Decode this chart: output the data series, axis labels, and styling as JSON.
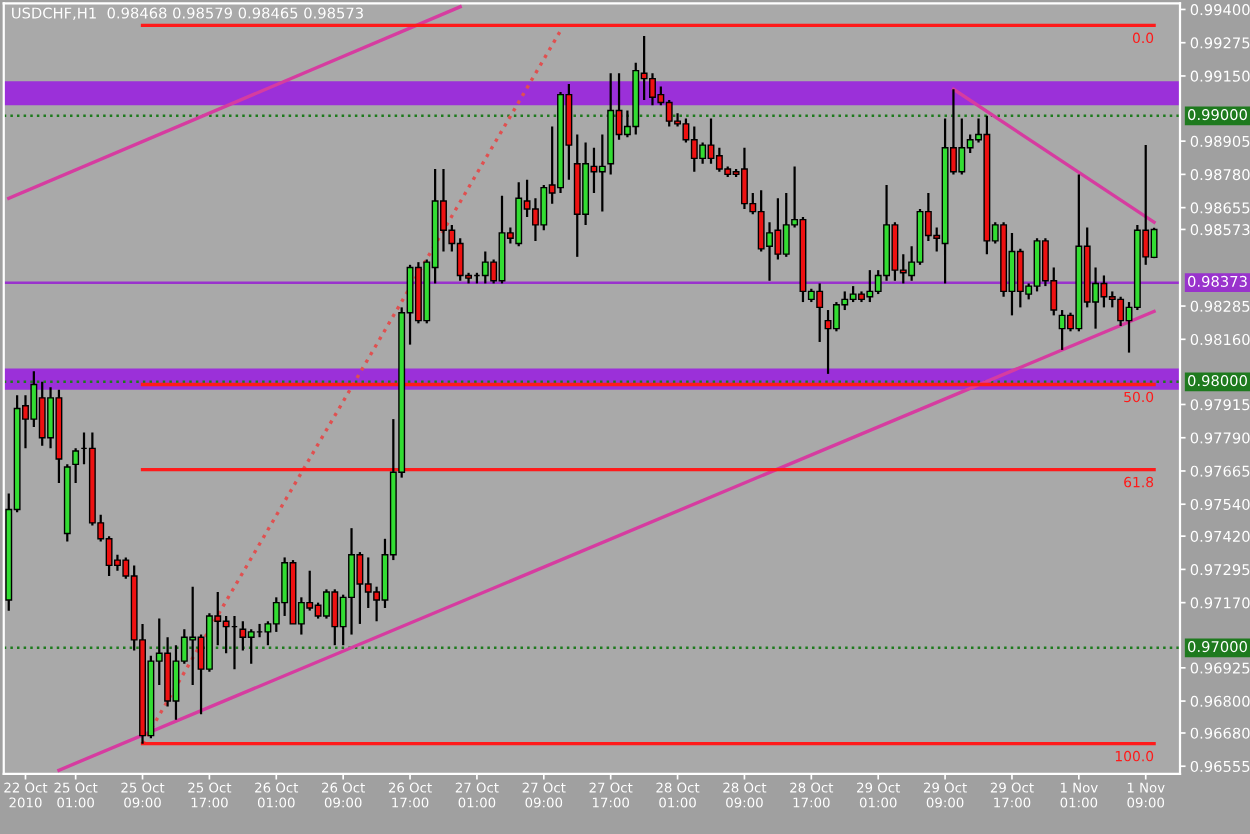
{
  "chart_data": {
    "type": "candlestick",
    "title": "USDCHF,H1  0.98468 0.98579 0.98465 0.98573",
    "categories": [
      null,
      null,
      "22 Oct 2010",
      null,
      null,
      null,
      null,
      null,
      "25 Oct 01:00",
      null,
      null,
      null,
      null,
      null,
      null,
      null,
      "25 Oct 09:00",
      null,
      null,
      null,
      null,
      null,
      null,
      null,
      "25 Oct 17:00",
      null,
      null,
      null,
      null,
      null,
      null,
      null,
      "26 Oct 01:00",
      null,
      null,
      null,
      null,
      null,
      null,
      null,
      "26 Oct 09:00",
      null,
      null,
      null,
      null,
      null,
      null,
      null,
      "26 Oct 17:00",
      null,
      null,
      null,
      null,
      null,
      null,
      null,
      "27 Oct 01:00",
      null,
      null,
      null,
      null,
      null,
      null,
      null,
      "27 Oct 09:00",
      null,
      null,
      null,
      null,
      null,
      null,
      null,
      "27 Oct 17:00",
      null,
      null,
      null,
      null,
      null,
      null,
      null,
      "28 Oct 01:00",
      null,
      null,
      null,
      null,
      null,
      null,
      null,
      "28 Oct 09:00",
      null,
      null,
      null,
      null,
      null,
      null,
      null,
      "28 Oct 17:00",
      null,
      null,
      null,
      null,
      null,
      null,
      null,
      "29 Oct 01:00",
      null,
      null,
      null,
      null,
      null,
      null,
      null,
      "29 Oct 09:00",
      null,
      null,
      null,
      null,
      null,
      null,
      null,
      "29 Oct 17:00",
      null,
      null,
      null,
      null,
      null,
      null,
      null,
      "1 Nov 01:00",
      null,
      null,
      null,
      null,
      null,
      null,
      null,
      "1 Nov 09:00",
      null
    ],
    "ohlc": [
      [
        0.9718,
        0.9758,
        0.9714,
        0.9752
      ],
      [
        0.9752,
        0.9795,
        0.9751,
        0.979
      ],
      [
        0.9791,
        0.9795,
        0.9775,
        0.9786
      ],
      [
        0.9786,
        0.9804,
        0.9783,
        0.9799
      ],
      [
        0.9794,
        0.98,
        0.9776,
        0.9779
      ],
      [
        0.9779,
        0.9798,
        0.9775,
        0.9794
      ],
      [
        0.9794,
        0.9797,
        0.9762,
        0.9771
      ],
      [
        0.9743,
        0.9769,
        0.974,
        0.9768
      ],
      [
        0.9769,
        0.9775,
        0.9762,
        0.9774
      ],
      [
        0.9775,
        0.9781,
        0.9769,
        0.9775
      ],
      [
        0.9775,
        0.9781,
        0.9746,
        0.9747
      ],
      [
        0.9747,
        0.975,
        0.974,
        0.9741
      ],
      [
        0.9741,
        0.9742,
        0.9727,
        0.9731
      ],
      [
        0.9733,
        0.9735,
        0.9729,
        0.9731
      ],
      [
        0.9733,
        0.9734,
        0.9726,
        0.9727
      ],
      [
        0.9727,
        0.9731,
        0.9699,
        0.9703
      ],
      [
        0.9703,
        0.9709,
        0.9664,
        0.9667
      ],
      [
        0.9667,
        0.9697,
        0.9666,
        0.9695
      ],
      [
        0.9695,
        0.9711,
        0.9686,
        0.9698
      ],
      [
        0.9698,
        0.9704,
        0.9678,
        0.968
      ],
      [
        0.968,
        0.9701,
        0.9673,
        0.9695
      ],
      [
        0.9695,
        0.9707,
        0.9694,
        0.9704
      ],
      [
        0.9703,
        0.9723,
        0.9686,
        0.9704
      ],
      [
        0.9704,
        0.9705,
        0.9675,
        0.9692
      ],
      [
        0.9692,
        0.9713,
        0.9691,
        0.9712
      ],
      [
        0.9712,
        0.9721,
        0.9701,
        0.971
      ],
      [
        0.971,
        0.9712,
        0.9698,
        0.9708
      ],
      [
        0.9708,
        0.9712,
        0.9692,
        0.9708
      ],
      [
        0.9707,
        0.971,
        0.9699,
        0.9704
      ],
      [
        0.9704,
        0.9707,
        0.9694,
        0.9706
      ],
      [
        0.9706,
        0.9709,
        0.9704,
        0.9706
      ],
      [
        0.9706,
        0.971,
        0.9701,
        0.9709
      ],
      [
        0.9709,
        0.9719,
        0.9706,
        0.9717
      ],
      [
        0.9717,
        0.9734,
        0.9712,
        0.9732
      ],
      [
        0.9732,
        0.9733,
        0.9709,
        0.9709
      ],
      [
        0.9709,
        0.9719,
        0.9705,
        0.9717
      ],
      [
        0.9717,
        0.9729,
        0.9714,
        0.9715
      ],
      [
        0.9716,
        0.9717,
        0.9711,
        0.9712
      ],
      [
        0.9712,
        0.9722,
        0.9711,
        0.9721
      ],
      [
        0.9721,
        0.9722,
        0.9701,
        0.9708
      ],
      [
        0.9708,
        0.972,
        0.9701,
        0.9719
      ],
      [
        0.9719,
        0.9745,
        0.9705,
        0.9735
      ],
      [
        0.9735,
        0.9736,
        0.9709,
        0.9724
      ],
      [
        0.9724,
        0.9734,
        0.9715,
        0.9721
      ],
      [
        0.9721,
        0.9723,
        0.971,
        0.9718
      ],
      [
        0.9718,
        0.9741,
        0.9715,
        0.9735
      ],
      [
        0.9735,
        0.9786,
        0.9733,
        0.9766
      ],
      [
        0.9766,
        0.9828,
        0.9764,
        0.9826
      ],
      [
        0.9826,
        0.9844,
        0.9814,
        0.9843
      ],
      [
        0.9843,
        0.9845,
        0.9822,
        0.9823
      ],
      [
        0.9823,
        0.9846,
        0.9822,
        0.9845
      ],
      [
        0.9843,
        0.988,
        0.9837,
        0.9868
      ],
      [
        0.9868,
        0.988,
        0.9849,
        0.9857
      ],
      [
        0.9857,
        0.9859,
        0.9849,
        0.9852
      ],
      [
        0.9852,
        0.9854,
        0.9838,
        0.984
      ],
      [
        0.984,
        0.9841,
        0.9837,
        0.9839
      ],
      [
        0.984,
        0.9841,
        0.9837,
        0.984
      ],
      [
        0.984,
        0.9849,
        0.9837,
        0.9845
      ],
      [
        0.9845,
        0.9846,
        0.9837,
        0.9838
      ],
      [
        0.9838,
        0.987,
        0.9837,
        0.9856
      ],
      [
        0.9856,
        0.9858,
        0.9852,
        0.9854
      ],
      [
        0.9852,
        0.9875,
        0.9851,
        0.9869
      ],
      [
        0.9868,
        0.9876,
        0.9862,
        0.9865
      ],
      [
        0.9865,
        0.9869,
        0.9853,
        0.9859
      ],
      [
        0.9859,
        0.9874,
        0.9857,
        0.9873
      ],
      [
        0.9874,
        0.9896,
        0.9867,
        0.9871
      ],
      [
        0.9873,
        0.9909,
        0.9871,
        0.9908
      ],
      [
        0.9908,
        0.9912,
        0.9876,
        0.9889
      ],
      [
        0.9882,
        0.9893,
        0.9847,
        0.9863
      ],
      [
        0.9863,
        0.989,
        0.9859,
        0.9882
      ],
      [
        0.9881,
        0.9888,
        0.9871,
        0.9879
      ],
      [
        0.9879,
        0.9893,
        0.9864,
        0.9881
      ],
      [
        0.9882,
        0.9916,
        0.9878,
        0.9902
      ],
      [
        0.9902,
        0.9916,
        0.9891,
        0.9893
      ],
      [
        0.9893,
        0.9902,
        0.9892,
        0.9896
      ],
      [
        0.9896,
        0.992,
        0.9893,
        0.9917
      ],
      [
        0.9916,
        0.993,
        0.9906,
        0.9914
      ],
      [
        0.9914,
        0.9916,
        0.9904,
        0.9907
      ],
      [
        0.9908,
        0.9911,
        0.9904,
        0.9905
      ],
      [
        0.9905,
        0.9906,
        0.9896,
        0.9898
      ],
      [
        0.9898,
        0.9901,
        0.9896,
        0.9897
      ],
      [
        0.9897,
        0.9899,
        0.989,
        0.9891
      ],
      [
        0.9891,
        0.9896,
        0.9879,
        0.9884
      ],
      [
        0.9884,
        0.989,
        0.9882,
        0.9889
      ],
      [
        0.9889,
        0.9899,
        0.9882,
        0.9884
      ],
      [
        0.9885,
        0.9888,
        0.9879,
        0.988
      ],
      [
        0.988,
        0.9881,
        0.9877,
        0.9878
      ],
      [
        0.9879,
        0.988,
        0.9877,
        0.9878
      ],
      [
        0.988,
        0.9888,
        0.9865,
        0.9867
      ],
      [
        0.9867,
        0.9871,
        0.9863,
        0.9864
      ],
      [
        0.9864,
        0.9872,
        0.9849,
        0.985
      ],
      [
        0.9851,
        0.986,
        0.9838,
        0.9856
      ],
      [
        0.9857,
        0.9869,
        0.9846,
        0.9848
      ],
      [
        0.9848,
        0.9871,
        0.9847,
        0.9859
      ],
      [
        0.9859,
        0.9881,
        0.9858,
        0.9861
      ],
      [
        0.9861,
        0.9862,
        0.983,
        0.9834
      ],
      [
        0.9831,
        0.9835,
        0.983,
        0.9834
      ],
      [
        0.9834,
        0.9837,
        0.9815,
        0.9828
      ],
      [
        0.9823,
        0.9827,
        0.9803,
        0.982
      ],
      [
        0.982,
        0.983,
        0.9819,
        0.9829
      ],
      [
        0.9829,
        0.9834,
        0.9827,
        0.9831
      ],
      [
        0.9831,
        0.9836,
        0.983,
        0.9833
      ],
      [
        0.9833,
        0.9834,
        0.983,
        0.9831
      ],
      [
        0.9832,
        0.9842,
        0.983,
        0.9834
      ],
      [
        0.9834,
        0.9842,
        0.9833,
        0.984
      ],
      [
        0.984,
        0.9874,
        0.9838,
        0.9859
      ],
      [
        0.9859,
        0.986,
        0.9838,
        0.9842
      ],
      [
        0.9842,
        0.9848,
        0.9837,
        0.9841
      ],
      [
        0.984,
        0.9851,
        0.9838,
        0.9845
      ],
      [
        0.9845,
        0.9865,
        0.9844,
        0.9864
      ],
      [
        0.9864,
        0.9871,
        0.9853,
        0.9855
      ],
      [
        0.9855,
        0.9858,
        0.9849,
        0.9854
      ],
      [
        0.9852,
        0.9899,
        0.9837,
        0.9888
      ],
      [
        0.9888,
        0.991,
        0.9878,
        0.9879
      ],
      [
        0.9879,
        0.9899,
        0.9878,
        0.9888
      ],
      [
        0.9888,
        0.9893,
        0.9886,
        0.9891
      ],
      [
        0.9891,
        0.9899,
        0.989,
        0.9893
      ],
      [
        0.9893,
        0.99,
        0.9848,
        0.9853
      ],
      [
        0.9853,
        0.986,
        0.9852,
        0.9859
      ],
      [
        0.9859,
        0.986,
        0.9832,
        0.9834
      ],
      [
        0.9834,
        0.9856,
        0.9825,
        0.9849
      ],
      [
        0.9849,
        0.985,
        0.9828,
        0.9834
      ],
      [
        0.9833,
        0.9837,
        0.9831,
        0.9836
      ],
      [
        0.9836,
        0.9854,
        0.9834,
        0.9853
      ],
      [
        0.9853,
        0.9854,
        0.9836,
        0.9838
      ],
      [
        0.9838,
        0.9843,
        0.9825,
        0.9827
      ],
      [
        0.982,
        0.9827,
        0.9812,
        0.9825
      ],
      [
        0.9825,
        0.9826,
        0.9819,
        0.982
      ],
      [
        0.982,
        0.9878,
        0.9819,
        0.9851
      ],
      [
        0.9851,
        0.9858,
        0.9828,
        0.983
      ],
      [
        0.983,
        0.9843,
        0.982,
        0.9837
      ],
      [
        0.9837,
        0.984,
        0.9828,
        0.9832
      ],
      [
        0.9832,
        0.9834,
        0.9828,
        0.9831
      ],
      [
        0.9831,
        0.9832,
        0.9821,
        0.9823
      ],
      [
        0.9823,
        0.983,
        0.9811,
        0.9828
      ],
      [
        0.9828,
        0.9859,
        0.9827,
        0.9857
      ],
      [
        0.9857,
        0.9889,
        0.9844,
        0.9847
      ],
      [
        0.98468,
        0.98579,
        0.98465,
        0.98573
      ]
    ],
    "series": [
      {
        "type": "line",
        "color": "#d63ca0",
        "values": [
          0.9869,
          null,
          null,
          null,
          null,
          null,
          null,
          null,
          null,
          null,
          null,
          null,
          null,
          null,
          null,
          null,
          null,
          null,
          null,
          null,
          null,
          null,
          null,
          null,
          null,
          null,
          null,
          null,
          null,
          null,
          null,
          null,
          null,
          null,
          null,
          null,
          null,
          null,
          null,
          null,
          null,
          null,
          null,
          null,
          null,
          null,
          null,
          null,
          null,
          null,
          null,
          null,
          null,
          null,
          0.9941,
          null,
          null,
          null,
          null,
          null,
          null,
          null,
          null,
          null,
          null,
          null,
          null,
          null,
          null,
          null,
          null,
          null,
          null,
          null,
          null,
          null,
          null,
          null,
          null,
          null,
          null,
          null,
          null,
          null,
          null,
          null,
          null,
          null,
          null,
          null,
          null,
          null,
          null,
          null,
          null,
          null,
          null,
          null,
          null,
          null,
          null,
          null,
          null,
          null,
          null,
          null,
          null,
          null,
          null,
          null,
          null,
          null,
          null,
          null,
          null,
          null,
          null,
          null,
          null,
          null,
          null,
          null,
          null,
          null,
          null,
          null,
          null,
          null,
          null,
          null,
          null,
          null,
          null,
          null,
          null,
          null,
          null,
          null
        ]
      },
      {
        "type": "line",
        "color": "#d63ca0",
        "values": [
          null,
          null,
          null,
          null,
          null,
          null,
          0.9654,
          null,
          null,
          null,
          null,
          null,
          null,
          null,
          null,
          null,
          null,
          null,
          null,
          null,
          null,
          null,
          null,
          null,
          null,
          null,
          null,
          null,
          null,
          null,
          null,
          null,
          null,
          null,
          null,
          null,
          null,
          null,
          null,
          null,
          null,
          null,
          null,
          null,
          null,
          null,
          null,
          null,
          null,
          null,
          null,
          null,
          null,
          null,
          null,
          null,
          null,
          null,
          null,
          null,
          null,
          null,
          null,
          null,
          null,
          null,
          null,
          null,
          null,
          null,
          null,
          null,
          null,
          null,
          null,
          null,
          null,
          null,
          null,
          null,
          null,
          null,
          null,
          null,
          null,
          null,
          null,
          null,
          null,
          null,
          null,
          null,
          null,
          null,
          null,
          null,
          null,
          null,
          null,
          null,
          null,
          null,
          null,
          null,
          null,
          null,
          null,
          null,
          null,
          null,
          null,
          null,
          null,
          null,
          null,
          null,
          null,
          null,
          null,
          null,
          null,
          null,
          null,
          null,
          null,
          null,
          null,
          null,
          null,
          null,
          null,
          null,
          null,
          null,
          null,
          null,
          null,
          0.98265
        ]
      },
      {
        "type": "line",
        "color": "#d63ca0",
        "values": [
          null,
          null,
          null,
          null,
          null,
          null,
          null,
          null,
          null,
          null,
          null,
          null,
          null,
          null,
          null,
          null,
          null,
          null,
          null,
          null,
          null,
          null,
          null,
          null,
          null,
          null,
          null,
          null,
          null,
          null,
          null,
          null,
          null,
          null,
          null,
          null,
          null,
          null,
          null,
          null,
          null,
          null,
          null,
          null,
          null,
          null,
          null,
          null,
          null,
          null,
          null,
          null,
          null,
          null,
          null,
          null,
          null,
          null,
          null,
          null,
          null,
          null,
          null,
          null,
          null,
          null,
          null,
          null,
          null,
          null,
          null,
          null,
          null,
          null,
          null,
          null,
          null,
          null,
          null,
          null,
          null,
          null,
          null,
          null,
          null,
          null,
          null,
          null,
          null,
          null,
          null,
          null,
          null,
          null,
          null,
          null,
          null,
          null,
          null,
          null,
          null,
          null,
          null,
          null,
          null,
          null,
          null,
          null,
          null,
          null,
          null,
          null,
          null,
          0.991,
          null,
          null,
          null,
          null,
          null,
          null,
          null,
          null,
          null,
          null,
          null,
          null,
          null,
          null,
          null,
          null,
          null,
          null,
          null,
          null,
          null,
          null,
          null,
          0.986
        ]
      },
      {
        "type": "line",
        "color": "#e05050",
        "line_style": "dotted",
        "values": [
          null,
          null,
          null,
          null,
          null,
          null,
          null,
          null,
          null,
          null,
          null,
          null,
          null,
          null,
          null,
          null,
          0.9664,
          null,
          null,
          null,
          null,
          null,
          null,
          null,
          null,
          null,
          null,
          null,
          null,
          null,
          null,
          null,
          null,
          null,
          null,
          null,
          null,
          null,
          null,
          null,
          null,
          null,
          null,
          null,
          null,
          null,
          null,
          null,
          null,
          null,
          null,
          null,
          null,
          null,
          null,
          null,
          null,
          null,
          null,
          null,
          null,
          null,
          null,
          null,
          null,
          null,
          0.9932,
          null,
          null,
          null,
          null,
          null,
          null,
          null,
          null,
          null,
          null,
          null,
          null,
          null,
          null,
          null,
          null,
          null,
          null,
          null,
          null,
          null,
          null,
          null,
          null,
          null,
          null,
          null,
          null,
          null,
          null,
          null,
          null,
          null,
          null,
          null,
          null,
          null,
          null,
          null,
          null,
          null,
          null,
          null,
          null,
          null,
          null,
          null,
          null,
          null,
          null,
          null,
          null,
          null,
          null,
          null,
          null,
          null,
          null,
          null,
          null,
          null,
          null,
          null,
          null,
          null,
          null,
          null,
          null,
          null,
          null,
          null
        ]
      },
      {
        "type": "line",
        "name": "0.0",
        "color": "#ff1a1a",
        "values": [
          null,
          null,
          null,
          null,
          null,
          null,
          null,
          null,
          null,
          null,
          null,
          null,
          null,
          null,
          null,
          null,
          0.9934,
          null,
          null,
          null,
          null,
          null,
          null,
          null,
          null,
          null,
          null,
          null,
          null,
          null,
          null,
          null,
          null,
          null,
          null,
          null,
          null,
          null,
          null,
          null,
          null,
          null,
          null,
          null,
          null,
          null,
          null,
          null,
          null,
          null,
          null,
          null,
          null,
          null,
          null,
          null,
          null,
          null,
          null,
          null,
          null,
          null,
          null,
          null,
          null,
          null,
          null,
          null,
          null,
          null,
          null,
          null,
          null,
          null,
          null,
          null,
          null,
          null,
          null,
          null,
          null,
          null,
          null,
          null,
          null,
          null,
          null,
          null,
          null,
          null,
          null,
          null,
          null,
          null,
          null,
          null,
          null,
          null,
          null,
          null,
          null,
          null,
          null,
          null,
          null,
          null,
          null,
          null,
          null,
          null,
          null,
          null,
          null,
          null,
          null,
          null,
          null,
          null,
          null,
          null,
          null,
          null,
          null,
          null,
          null,
          null,
          null,
          null,
          null,
          null,
          null,
          null,
          null,
          null,
          null,
          null,
          null,
          0.9934
        ]
      },
      {
        "type": "line",
        "name": "50.0",
        "color": "#ff1a1a",
        "values": [
          null,
          null,
          null,
          null,
          null,
          null,
          null,
          null,
          null,
          null,
          null,
          null,
          null,
          null,
          null,
          null,
          0.9799,
          null,
          null,
          null,
          null,
          null,
          null,
          null,
          null,
          null,
          null,
          null,
          null,
          null,
          null,
          null,
          null,
          null,
          null,
          null,
          null,
          null,
          null,
          null,
          null,
          null,
          null,
          null,
          null,
          null,
          null,
          null,
          null,
          null,
          null,
          null,
          null,
          null,
          null,
          null,
          null,
          null,
          null,
          null,
          null,
          null,
          null,
          null,
          null,
          null,
          null,
          null,
          null,
          null,
          null,
          null,
          null,
          null,
          null,
          null,
          null,
          null,
          null,
          null,
          null,
          null,
          null,
          null,
          null,
          null,
          null,
          null,
          null,
          null,
          null,
          null,
          null,
          null,
          null,
          null,
          null,
          null,
          null,
          null,
          null,
          null,
          null,
          null,
          null,
          null,
          null,
          null,
          null,
          null,
          null,
          null,
          null,
          null,
          null,
          null,
          null,
          null,
          null,
          null,
          null,
          null,
          null,
          null,
          null,
          null,
          null,
          null,
          null,
          null,
          null,
          null,
          null,
          null,
          null,
          null,
          null,
          0.9799
        ]
      },
      {
        "type": "line",
        "name": "61.8",
        "color": "#ff1a1a",
        "values": [
          null,
          null,
          null,
          null,
          null,
          null,
          null,
          null,
          null,
          null,
          null,
          null,
          null,
          null,
          null,
          null,
          0.9767,
          null,
          null,
          null,
          null,
          null,
          null,
          null,
          null,
          null,
          null,
          null,
          null,
          null,
          null,
          null,
          null,
          null,
          null,
          null,
          null,
          null,
          null,
          null,
          null,
          null,
          null,
          null,
          null,
          null,
          null,
          null,
          null,
          null,
          null,
          null,
          null,
          null,
          null,
          null,
          null,
          null,
          null,
          null,
          null,
          null,
          null,
          null,
          null,
          null,
          null,
          null,
          null,
          null,
          null,
          null,
          null,
          null,
          null,
          null,
          null,
          null,
          null,
          null,
          null,
          null,
          null,
          null,
          null,
          null,
          null,
          null,
          null,
          null,
          null,
          null,
          null,
          null,
          null,
          null,
          null,
          null,
          null,
          null,
          null,
          null,
          null,
          null,
          null,
          null,
          null,
          null,
          null,
          null,
          null,
          null,
          null,
          null,
          null,
          null,
          null,
          null,
          null,
          null,
          null,
          null,
          null,
          null,
          null,
          null,
          null,
          null,
          null,
          null,
          null,
          null,
          null,
          null,
          null,
          null,
          null,
          0.9767
        ]
      },
      {
        "type": "line",
        "name": "100.0",
        "color": "#ff1a1a",
        "values": [
          null,
          null,
          null,
          null,
          null,
          null,
          null,
          null,
          null,
          null,
          null,
          null,
          null,
          null,
          null,
          null,
          0.9664,
          null,
          null,
          null,
          null,
          null,
          null,
          null,
          null,
          null,
          null,
          null,
          null,
          null,
          null,
          null,
          null,
          null,
          null,
          null,
          null,
          null,
          null,
          null,
          null,
          null,
          null,
          null,
          null,
          null,
          null,
          null,
          null,
          null,
          null,
          null,
          null,
          null,
          null,
          null,
          null,
          null,
          null,
          null,
          null,
          null,
          null,
          null,
          null,
          null,
          null,
          null,
          null,
          null,
          null,
          null,
          null,
          null,
          null,
          null,
          null,
          null,
          null,
          null,
          null,
          null,
          null,
          null,
          null,
          null,
          null,
          null,
          null,
          null,
          null,
          null,
          null,
          null,
          null,
          null,
          null,
          null,
          null,
          null,
          null,
          null,
          null,
          null,
          null,
          null,
          null,
          null,
          null,
          null,
          null,
          null,
          null,
          null,
          null,
          null,
          null,
          null,
          null,
          null,
          null,
          null,
          null,
          null,
          null,
          null,
          null,
          null,
          null,
          null,
          null,
          null,
          null,
          null,
          null,
          null,
          null,
          0.9664
        ]
      }
    ],
    "bands": [
      {
        "axis": "y",
        "from": 0.9904,
        "to": 0.9913,
        "color": "#9b30d9"
      },
      {
        "axis": "y",
        "from": 0.9797,
        "to": 0.9805,
        "color": "#9b30d9"
      }
    ],
    "ref_lines": [
      {
        "axis": "y",
        "value": 0.99,
        "label": "0.99000",
        "color": "#1e7a1e",
        "line_style": "dotted"
      },
      {
        "axis": "y",
        "value": 0.98373,
        "label": "0.98373",
        "color": "#9933cc",
        "line_style": "solid"
      },
      {
        "axis": "y",
        "value": 0.98,
        "label": "0.98000",
        "color": "#1e7a1e",
        "line_style": "dotted"
      },
      {
        "axis": "y",
        "value": 0.97,
        "label": "0.97000",
        "color": "#1e7a1e",
        "line_style": "dotted"
      }
    ],
    "ylim": [
      0.96526,
      0.99423
    ],
    "yticks": [
      {
        "value": 0.994,
        "label": "0.99400"
      },
      0.99275,
      {
        "value": 0.9915,
        "label": "0.99150"
      },
      0.98905,
      {
        "value": 0.9878,
        "label": "0.98780"
      },
      0.98655,
      0.98573,
      0.98285,
      {
        "value": 0.9816,
        "label": "0.98160"
      },
      0.97915,
      {
        "value": 0.9779,
        "label": "0.97790"
      },
      0.97665,
      {
        "value": 0.9754,
        "label": "0.97540"
      },
      {
        "value": 0.9742,
        "label": "0.97420"
      },
      0.97295,
      {
        "value": 0.9717,
        "label": "0.97170"
      },
      0.96925,
      {
        "value": 0.968,
        "label": "0.96800"
      },
      {
        "value": 0.9668,
        "label": "0.96680"
      },
      0.96555
    ]
  }
}
